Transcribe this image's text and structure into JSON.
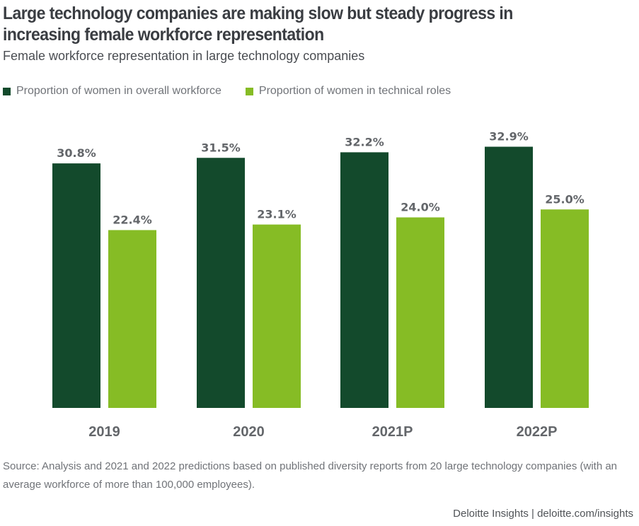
{
  "header": {
    "title": "Large technology companies are making slow but steady progress in increasing female workforce representation",
    "subtitle": "Female workforce representation in large technology companies"
  },
  "colors": {
    "overall": "#134a2c",
    "technical": "#86bc25"
  },
  "chart_data": {
    "type": "bar",
    "title": "Large technology companies are making slow but steady progress in increasing female workforce representation",
    "subtitle": "Female workforce representation in large technology companies",
    "categories": [
      "2019",
      "2020",
      "2021P",
      "2022P"
    ],
    "series": [
      {
        "name": "Proportion of women in overall workforce",
        "values": [
          30.8,
          31.5,
          32.2,
          32.9
        ],
        "labels": [
          "30.8%",
          "31.5%",
          "32.2%",
          "32.9%"
        ],
        "color": "#134a2c"
      },
      {
        "name": "Proportion of women in technical roles",
        "values": [
          22.4,
          23.1,
          24.0,
          25.0
        ],
        "labels": [
          "22.4%",
          "23.1%",
          "24.0%",
          "25.0%"
        ],
        "color": "#86bc25"
      }
    ],
    "xlabel": "",
    "ylabel": "",
    "ylim": [
      0,
      35
    ],
    "grid": false,
    "legend": "top-left"
  },
  "footer": {
    "source": "Source: Analysis and 2021 and 2022 predictions based on published diversity reports from 20 large technology companies (with an average workforce of more than 100,000 employees).",
    "credit": "Deloitte Insights | deloitte.com/insights"
  }
}
